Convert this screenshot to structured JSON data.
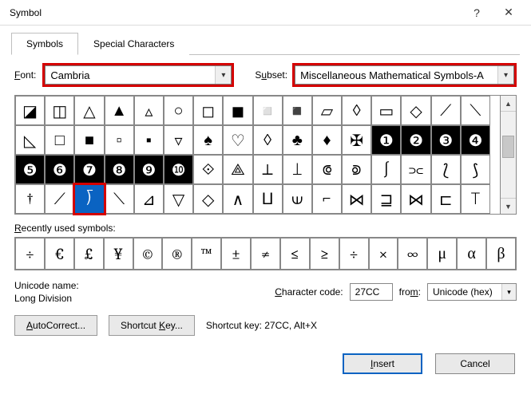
{
  "window": {
    "title": "Symbol"
  },
  "tabs": {
    "symbols": "Symbols",
    "special": "Special Characters",
    "active": "symbols"
  },
  "font": {
    "label": "Font:",
    "value": "Cambria"
  },
  "subset": {
    "label": "Subset:",
    "value": "Miscellaneous Mathematical Symbols-A"
  },
  "grid_rows": [
    [
      "◪",
      "◫",
      "△",
      "▲",
      "▵",
      "○",
      "◻",
      "◼",
      "◽",
      "◾",
      "▱",
      "◊",
      "▭",
      "◇",
      "⟋",
      "⟍"
    ],
    [
      "◺",
      "□",
      "■",
      "▫",
      "▪",
      "▿",
      "♠",
      "♡",
      "◊",
      "♣",
      "♦",
      "✠",
      "❶",
      "❷",
      "❸",
      "❹"
    ],
    [
      "❺",
      "❻",
      "❼",
      "❽",
      "❾",
      "❿",
      "⟐",
      "⟁",
      "⟂",
      "⟘",
      "⟃",
      "⟄",
      "∫",
      "⫗",
      "⟅",
      "⟆"
    ],
    [
      "†",
      "⟋",
      "⟌",
      "⟍",
      "⊿",
      "▽",
      "◇",
      "∧",
      "⨿",
      "⟒",
      "⌐",
      "⋈",
      "⊒",
      "⋈",
      "⊏",
      "⟙"
    ]
  ],
  "grid_dark_cells": [
    [
      2,
      12
    ],
    [
      2,
      13
    ],
    [
      2,
      14
    ],
    [
      2,
      15
    ],
    [
      3,
      0
    ],
    [
      3,
      1
    ],
    [
      3,
      2
    ],
    [
      3,
      3
    ],
    [
      3,
      4
    ],
    [
      3,
      5
    ]
  ],
  "selected_cell": {
    "row": 4,
    "col": 2
  },
  "recent": {
    "label": "Recently used symbols:",
    "items": [
      "÷",
      "€",
      "£",
      "¥",
      "©",
      "®",
      "™",
      "±",
      "≠",
      "≤",
      "≥",
      "÷",
      "×",
      "∞",
      "μ",
      "α",
      "β"
    ]
  },
  "unicode_name": {
    "label": "Unicode name:",
    "value": "Long Division"
  },
  "charcode": {
    "label": "Character code:",
    "value": "27CC"
  },
  "from": {
    "label": "from:",
    "value": "Unicode (hex)"
  },
  "buttons": {
    "autocorrect": "AutoCorrect...",
    "shortcut": "Shortcut Key...",
    "shortcut_info": "Shortcut key: 27CC, Alt+X"
  },
  "footer": {
    "insert": "Insert",
    "cancel": "Cancel"
  },
  "colors": {
    "highlight_border": "#d40000",
    "selection_bg": "#0a63c2"
  }
}
